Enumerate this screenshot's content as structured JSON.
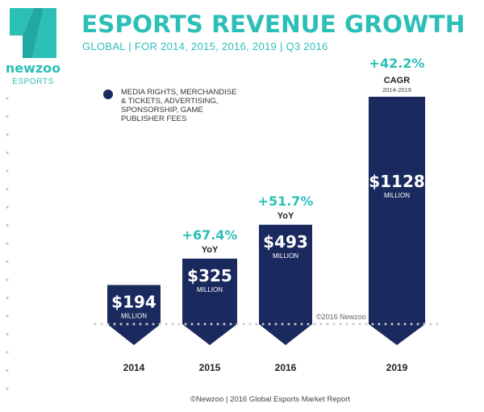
{
  "brand": {
    "name": "newzoo",
    "sub": "ESPORTS",
    "color": "#2bbfb7"
  },
  "chart_data": {
    "type": "bar",
    "title": "ESPORTS REVENUE GROWTH",
    "subtitle": "GLOBAL | FOR 2014, 2015, 2016, 2019 | Q3 2016",
    "legend": {
      "label_lines": [
        "MEDIA RIGHTS, MERCHANDISE",
        "& TICKETS, ADVERTISING,",
        "SPONSORSHIP, GAME",
        "PUBLISHER FEES"
      ],
      "placement": "top-left"
    },
    "categories": [
      "2014",
      "2015",
      "2016",
      "2019"
    ],
    "values": [
      194,
      325,
      493,
      1128
    ],
    "value_labels": [
      "$194",
      "$325",
      "$493",
      "$1128"
    ],
    "unit_label": "MILLION",
    "growth": [
      null,
      {
        "value": "+67.4%",
        "label": "YoY"
      },
      {
        "value": "+51.7%",
        "label": "YoY"
      },
      {
        "value": "+42.2%",
        "label": "CAGR",
        "sublabel": "2014-2019"
      }
    ],
    "watermark": "©2016 Newzoo",
    "source": "©Newzoo | 2016 Global Esports Market Report",
    "colors": {
      "bar": "#1b2a5e",
      "accent": "#2bbfb7",
      "text": "#222222",
      "dots": "#c8c8c8"
    }
  }
}
